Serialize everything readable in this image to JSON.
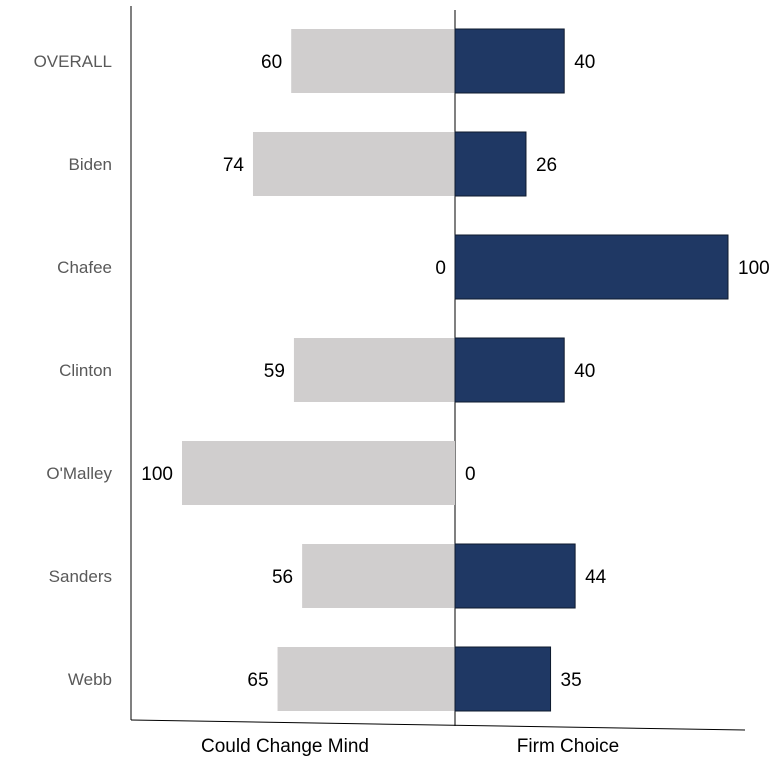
{
  "chart_data": {
    "type": "bar",
    "orientation": "horizontal-diverging",
    "categories": [
      "OVERALL",
      "Biden",
      "Chafee",
      "Clinton",
      "O'Malley",
      "Sanders",
      "Webb"
    ],
    "series": [
      {
        "name": "Could Change Mind",
        "values": [
          60,
          74,
          0,
          59,
          100,
          56,
          65
        ],
        "labels": [
          "60",
          "74",
          "0",
          "59",
          "100",
          "56",
          "65"
        ],
        "color": "#d0cece",
        "side": "left"
      },
      {
        "name": "Firm Choice",
        "values": [
          40,
          26,
          100,
          40,
          0,
          44,
          35
        ],
        "labels": [
          "40",
          "26",
          "100",
          "40",
          "0",
          "44",
          "35"
        ],
        "color": "#1f3864",
        "side": "right"
      }
    ],
    "xlim": [
      -100,
      100
    ],
    "grid": false,
    "legend": "none"
  }
}
